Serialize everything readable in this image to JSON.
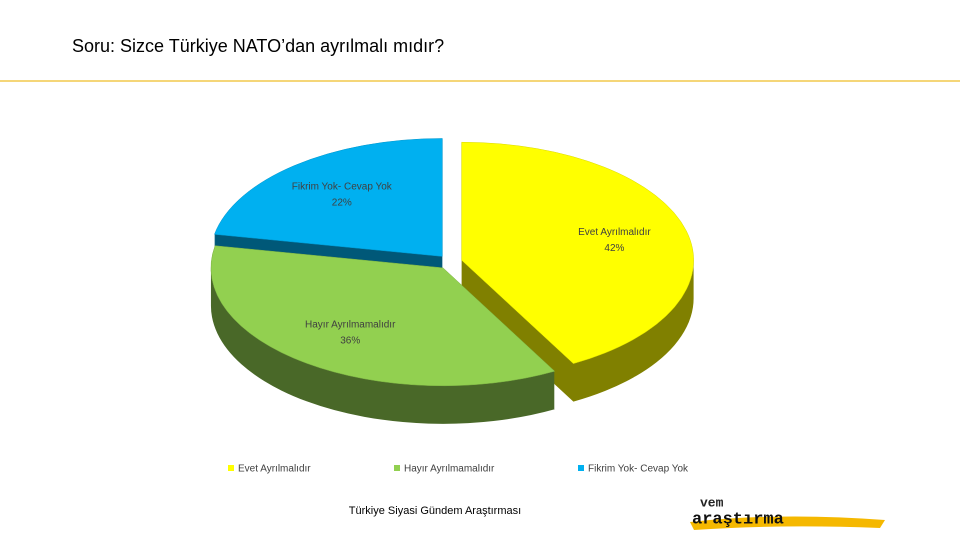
{
  "chart_data": {
    "type": "pie3d",
    "title": "Soru: Sizce Türkiye NATO’dan ayrılmalı mıdır?",
    "categories": [
      "Evet Ayrılmalıdır",
      "Hayır Ayrılmamalıdır",
      "Fikrim Yok- Cevap Yok"
    ],
    "values": [
      42,
      36,
      22
    ],
    "value_labels": [
      "42%",
      "36%",
      "22%"
    ],
    "colors": [
      "#ffff00",
      "#92d050",
      "#00b0f0"
    ],
    "legend": "bottom"
  },
  "footer": "Türkiye Siyasi Gündem Araştırması",
  "logo": {
    "top": "vem",
    "bottom": "araştırma"
  }
}
